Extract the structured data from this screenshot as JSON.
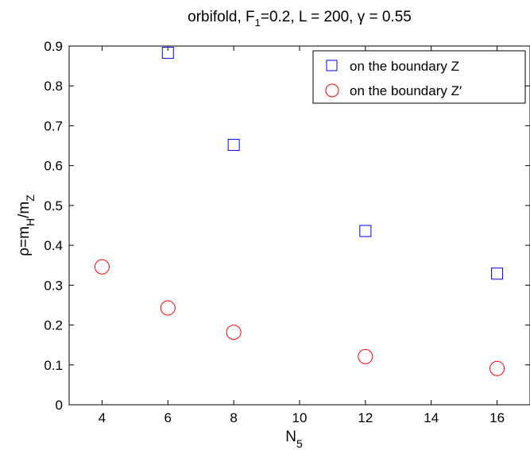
{
  "chart_data": {
    "type": "scatter",
    "title": "orbifold, F_1=0.2, L = 200, γ = 0.55",
    "title_parts": {
      "pre": "orbifold, F",
      "sub": "1",
      "post": "=0.2, L = 200, γ = 0.55"
    },
    "xlabel": "N_5",
    "xlabel_parts": {
      "main": "N",
      "sub": "5"
    },
    "ylabel": "ρ=m_H/m_Z",
    "ylabel_parts": {
      "a": "ρ=m",
      "sub1": "H",
      "b": "/m",
      "sub2": "Z"
    },
    "xlim": [
      3,
      17
    ],
    "ylim": [
      0,
      0.9
    ],
    "xticks": [
      4,
      6,
      8,
      10,
      12,
      14,
      16
    ],
    "yticks": [
      0,
      0.1,
      0.2,
      0.3,
      0.4,
      0.5,
      0.6,
      0.7,
      0.8,
      0.9
    ],
    "xtick_labels": [
      "4",
      "6",
      "8",
      "10",
      "12",
      "14",
      "16"
    ],
    "ytick_labels": [
      "0",
      "0.1",
      "0.2",
      "0.3",
      "0.4",
      "0.5",
      "0.6",
      "0.7",
      "0.8",
      "0.9"
    ],
    "grid": false,
    "legend_position": "top-right",
    "series": [
      {
        "name": "on the boundary Z",
        "marker": "square",
        "color": "#0000ff",
        "x": [
          6,
          8,
          12,
          16
        ],
        "y": [
          0.883,
          0.652,
          0.436,
          0.329
        ]
      },
      {
        "name": "on the boundary Z′",
        "marker": "circle",
        "color": "#ff0000",
        "x": [
          4,
          6,
          8,
          12,
          16
        ],
        "y": [
          0.346,
          0.243,
          0.182,
          0.121,
          0.091
        ]
      }
    ]
  }
}
